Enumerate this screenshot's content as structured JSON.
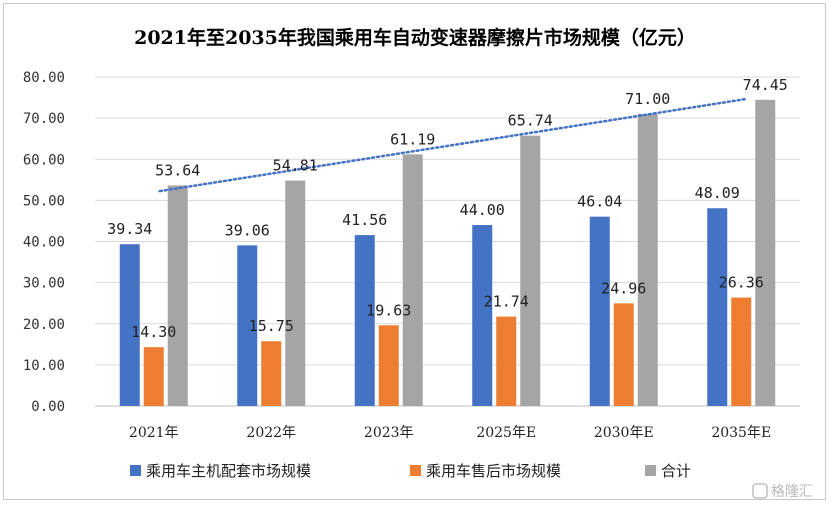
{
  "chart_data": {
    "type": "bar",
    "title": "2021年至2035年我国乘用车自动变速器摩擦片市场规模（亿元）",
    "categories": [
      "2021年",
      "2022年",
      "2023年",
      "2025年E",
      "2030年E",
      "2035年E"
    ],
    "series": [
      {
        "name": "乘用车主机配套市场规模",
        "values": [
          39.34,
          39.06,
          41.56,
          44.0,
          46.04,
          48.09
        ],
        "color": "#4472C4"
      },
      {
        "name": "乘用车售后市场规模",
        "values": [
          14.3,
          15.75,
          19.63,
          21.74,
          24.96,
          26.36
        ],
        "color": "#ED7D31"
      },
      {
        "name": "合计",
        "values": [
          53.64,
          54.81,
          61.19,
          65.74,
          71.0,
          74.45
        ],
        "color": "#A5A5A5"
      }
    ],
    "value_labels": [
      [
        "39.34",
        "39.06",
        "41.56",
        "44.00",
        "46.04",
        "48.09"
      ],
      [
        "14.30",
        "15.75",
        "19.63",
        "21.74",
        "24.96",
        "26.36"
      ],
      [
        "53.64",
        "54.81",
        "61.19",
        "65.74",
        "71.00",
        "74.45"
      ]
    ],
    "y_ticks": [
      "0.00",
      "10.00",
      "20.00",
      "30.00",
      "40.00",
      "50.00",
      "60.00",
      "70.00",
      "80.00"
    ],
    "ylim": [
      0,
      80
    ],
    "trendline": {
      "series": "合计",
      "type": "linear",
      "style": "dotted",
      "color": "#4472C4"
    },
    "grid": true,
    "legend_position": "bottom"
  },
  "watermark": "格隆汇"
}
